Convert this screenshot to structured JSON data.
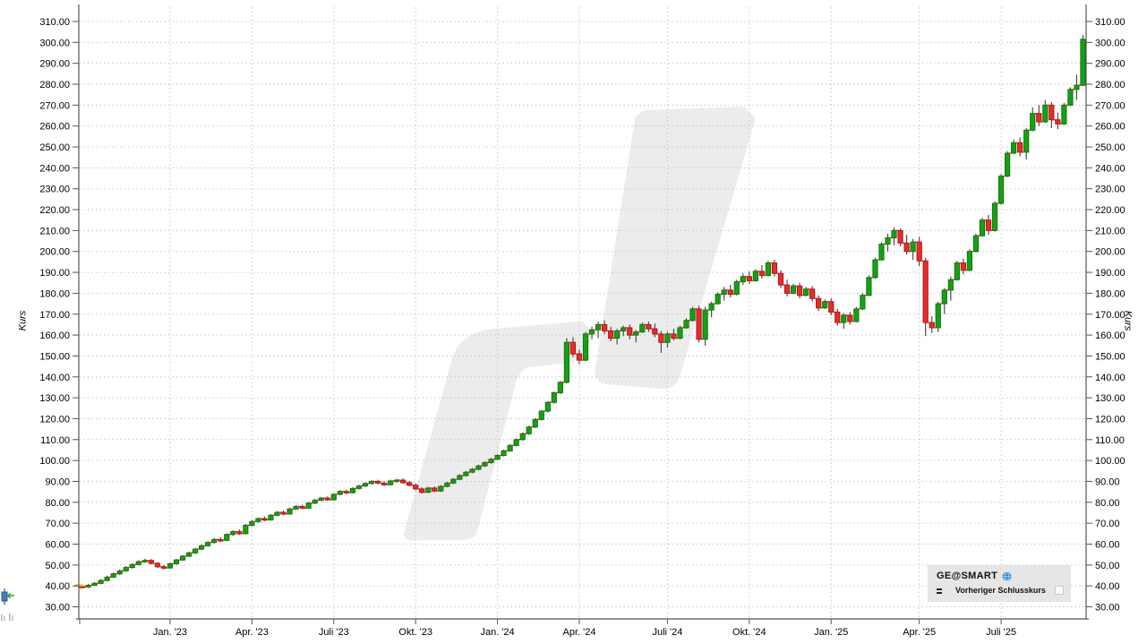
{
  "y_axis": {
    "title": "Kurs",
    "labels": [
      "30.00",
      "40.00",
      "50.00",
      "60.00",
      "70.00",
      "80.00",
      "90.00",
      "100.00",
      "110.00",
      "120.00",
      "130.00",
      "140.00",
      "150.00",
      "160.00",
      "170.00",
      "180.00",
      "190.00",
      "200.00",
      "210.00",
      "220.00",
      "230.00",
      "240.00",
      "250.00",
      "260.00",
      "270.00",
      "280.00",
      "290.00",
      "300.00",
      "310.00"
    ]
  },
  "x_axis": {
    "ticks": [
      {
        "label": "Jan. '23",
        "index": 14
      },
      {
        "label": "Apr. '23",
        "index": 27
      },
      {
        "label": "Juli '23",
        "index": 40
      },
      {
        "label": "Okt. '23",
        "index": 53
      },
      {
        "label": "Jan. '24",
        "index": 66
      },
      {
        "label": "Apr. '24",
        "index": 79
      },
      {
        "label": "Juli '24",
        "index": 93
      },
      {
        "label": "Okt. '24",
        "index": 106
      },
      {
        "label": "Jan. '25",
        "index": 119
      },
      {
        "label": "Apr. '25",
        "index": 133
      },
      {
        "label": "Juli '25",
        "index": 146
      }
    ]
  },
  "legend": {
    "instrument": "GE@SMART",
    "icon": "globe-icon",
    "series_label": "Vorheriger Schlusskurs"
  },
  "colors": {
    "up": "#16a016",
    "up_border": "#0a7a0a",
    "down": "#e62d2d",
    "down_border": "#b01414",
    "wick": "#3f3f3f",
    "prev_close_dash": "#cc3030",
    "grid": "#c6c6c6",
    "axis": "#555555",
    "text": "#000000",
    "watermark": "#ececec",
    "legend_bg": "#e6e6e6",
    "start_marker": "#e9b300"
  },
  "chart_data": {
    "type": "candlestick",
    "title": "",
    "ylabel": "Kurs",
    "ylim": [
      30,
      310
    ],
    "grid": "dotted",
    "legend_position": "bottom-right",
    "interval": "weekly",
    "start_marker": {
      "price": 40.2
    },
    "candles": [
      [
        39.8,
        40.6,
        38.9,
        39.5
      ],
      [
        39.5,
        41.0,
        39.0,
        40.3
      ],
      [
        40.3,
        41.9,
        40.0,
        41.2
      ],
      [
        41.2,
        43.3,
        40.8,
        42.6
      ],
      [
        42.6,
        44.9,
        42.2,
        44.2
      ],
      [
        44.2,
        46.4,
        43.8,
        45.8
      ],
      [
        45.8,
        47.9,
        45.2,
        47.2
      ],
      [
        47.2,
        49.5,
        46.8,
        48.8
      ],
      [
        48.8,
        50.9,
        48.3,
        50.2
      ],
      [
        50.2,
        52.3,
        49.8,
        51.6
      ],
      [
        51.6,
        53.0,
        51.0,
        52.2
      ],
      [
        52.2,
        52.8,
        50.2,
        50.8
      ],
      [
        50.8,
        51.5,
        48.5,
        49.2
      ],
      [
        49.2,
        50.0,
        47.8,
        48.6
      ],
      [
        48.6,
        51.2,
        48.2,
        50.6
      ],
      [
        50.6,
        53.0,
        50.1,
        52.4
      ],
      [
        52.4,
        54.8,
        52.0,
        54.2
      ],
      [
        54.2,
        56.4,
        53.8,
        55.8
      ],
      [
        55.8,
        58.2,
        55.3,
        57.6
      ],
      [
        57.6,
        59.8,
        57.1,
        59.2
      ],
      [
        59.2,
        61.4,
        58.8,
        60.8
      ],
      [
        60.8,
        62.9,
        60.3,
        62.2
      ],
      [
        62.2,
        63.2,
        61.0,
        61.8
      ],
      [
        61.8,
        65.2,
        61.4,
        64.6
      ],
      [
        64.6,
        66.6,
        64.0,
        66.0
      ],
      [
        66.0,
        67.0,
        64.4,
        65.0
      ],
      [
        65.0,
        69.6,
        64.6,
        69.0
      ],
      [
        69.0,
        71.4,
        68.5,
        70.8
      ],
      [
        70.8,
        72.8,
        70.2,
        72.2
      ],
      [
        72.2,
        73.2,
        71.0,
        71.6
      ],
      [
        71.6,
        74.4,
        71.2,
        73.8
      ],
      [
        73.8,
        75.8,
        73.3,
        75.2
      ],
      [
        75.2,
        76.0,
        73.8,
        74.4
      ],
      [
        74.4,
        77.4,
        74.0,
        76.8
      ],
      [
        76.8,
        78.6,
        76.3,
        78.0
      ],
      [
        78.0,
        78.8,
        76.6,
        77.2
      ],
      [
        77.2,
        80.2,
        76.8,
        79.6
      ],
      [
        79.6,
        81.6,
        79.1,
        81.0
      ],
      [
        81.0,
        82.6,
        80.5,
        82.0
      ],
      [
        82.0,
        82.8,
        80.6,
        81.2
      ],
      [
        81.2,
        84.4,
        80.8,
        83.8
      ],
      [
        83.8,
        85.8,
        83.3,
        85.2
      ],
      [
        85.2,
        86.0,
        84.0,
        84.6
      ],
      [
        84.6,
        87.2,
        84.2,
        86.6
      ],
      [
        86.6,
        88.4,
        86.1,
        87.8
      ],
      [
        87.8,
        89.6,
        87.3,
        89.0
      ],
      [
        89.0,
        90.6,
        88.5,
        90.0
      ],
      [
        90.0,
        90.8,
        88.6,
        89.2
      ],
      [
        89.2,
        90.0,
        87.8,
        88.4
      ],
      [
        88.4,
        90.8,
        88.0,
        90.2
      ],
      [
        90.2,
        91.2,
        89.4,
        90.6
      ],
      [
        90.6,
        91.4,
        88.8,
        89.4
      ],
      [
        89.4,
        90.2,
        87.6,
        88.2
      ],
      [
        88.2,
        89.0,
        85.8,
        86.4
      ],
      [
        86.4,
        87.2,
        84.2,
        84.8
      ],
      [
        84.8,
        87.4,
        84.4,
        86.8
      ],
      [
        86.8,
        87.6,
        84.8,
        85.4
      ],
      [
        85.4,
        88.2,
        85.0,
        87.6
      ],
      [
        87.6,
        89.8,
        87.2,
        89.2
      ],
      [
        89.2,
        91.6,
        88.8,
        91.0
      ],
      [
        91.0,
        93.4,
        90.6,
        92.8
      ],
      [
        92.8,
        95.0,
        92.3,
        94.4
      ],
      [
        94.4,
        96.4,
        93.9,
        95.8
      ],
      [
        95.8,
        98.0,
        95.3,
        97.4
      ],
      [
        97.4,
        99.6,
        96.9,
        99.0
      ],
      [
        99.0,
        101.2,
        98.5,
        100.6
      ],
      [
        100.6,
        103.0,
        100.1,
        102.4
      ],
      [
        102.4,
        105.2,
        101.9,
        104.6
      ],
      [
        104.6,
        107.8,
        104.1,
        107.2
      ],
      [
        107.2,
        110.6,
        106.7,
        110.0
      ],
      [
        110.0,
        113.4,
        109.4,
        112.8
      ],
      [
        112.8,
        116.6,
        112.3,
        116.0
      ],
      [
        116.0,
        120.2,
        115.5,
        119.6
      ],
      [
        119.6,
        124.2,
        119.1,
        123.6
      ],
      [
        123.6,
        128.4,
        123.0,
        127.8
      ],
      [
        127.8,
        133.0,
        127.2,
        132.4
      ],
      [
        132.4,
        138.0,
        131.8,
        137.4
      ],
      [
        137.4,
        158.5,
        136.9,
        156.5
      ],
      [
        156.5,
        159.0,
        149.5,
        151.0
      ],
      [
        151.0,
        153.0,
        146.0,
        148.0
      ],
      [
        148.0,
        161.5,
        147.5,
        160.5
      ],
      [
        160.5,
        164.0,
        158.0,
        162.5
      ],
      [
        162.5,
        166.5,
        158.5,
        165.0
      ],
      [
        165.0,
        167.0,
        160.5,
        162.0
      ],
      [
        162.0,
        164.0,
        157.0,
        158.5
      ],
      [
        158.5,
        163.0,
        155.5,
        162.0
      ],
      [
        162.0,
        164.5,
        159.5,
        163.5
      ],
      [
        163.5,
        165.0,
        158.0,
        160.0
      ],
      [
        160.0,
        162.5,
        156.5,
        161.5
      ],
      [
        161.5,
        166.0,
        161.0,
        165.0
      ],
      [
        165.0,
        166.5,
        161.5,
        163.0
      ],
      [
        163.0,
        165.5,
        159.0,
        160.5
      ],
      [
        160.5,
        162.0,
        151.5,
        156.5
      ],
      [
        156.5,
        161.5,
        154.0,
        160.5
      ],
      [
        160.5,
        163.0,
        157.5,
        158.5
      ],
      [
        158.5,
        164.5,
        158.0,
        163.5
      ],
      [
        163.5,
        168.0,
        163.0,
        167.0
      ],
      [
        167.0,
        173.5,
        166.5,
        172.5
      ],
      [
        172.5,
        174.0,
        156.5,
        158.0
      ],
      [
        158.0,
        173.5,
        155.0,
        172.0
      ],
      [
        172.0,
        176.0,
        168.5,
        175.0
      ],
      [
        175.0,
        180.5,
        174.5,
        179.5
      ],
      [
        179.5,
        183.0,
        176.5,
        181.5
      ],
      [
        181.5,
        184.0,
        178.0,
        179.5
      ],
      [
        179.5,
        186.5,
        179.0,
        185.5
      ],
      [
        185.5,
        189.5,
        184.0,
        188.0
      ],
      [
        188.0,
        190.5,
        184.5,
        186.0
      ],
      [
        186.0,
        191.5,
        185.5,
        190.5
      ],
      [
        190.5,
        193.5,
        187.0,
        188.5
      ],
      [
        188.5,
        195.5,
        188.0,
        194.5
      ],
      [
        194.5,
        196.0,
        188.0,
        189.5
      ],
      [
        189.5,
        191.0,
        182.5,
        184.0
      ],
      [
        184.0,
        186.5,
        178.5,
        180.0
      ],
      [
        180.0,
        184.5,
        179.5,
        183.5
      ],
      [
        183.5,
        185.0,
        177.5,
        179.0
      ],
      [
        179.0,
        183.0,
        178.5,
        182.0
      ],
      [
        182.0,
        183.5,
        176.0,
        177.5
      ],
      [
        177.5,
        179.0,
        171.5,
        173.0
      ],
      [
        173.0,
        177.0,
        172.5,
        176.0
      ],
      [
        176.0,
        177.5,
        169.5,
        171.0
      ],
      [
        171.0,
        172.5,
        164.5,
        166.0
      ],
      [
        166.0,
        170.5,
        163.0,
        169.5
      ],
      [
        169.5,
        171.0,
        165.0,
        166.5
      ],
      [
        166.5,
        173.5,
        166.0,
        172.5
      ],
      [
        172.5,
        180.0,
        172.0,
        179.0
      ],
      [
        179.0,
        188.5,
        178.5,
        187.5
      ],
      [
        187.5,
        197.0,
        187.0,
        196.0
      ],
      [
        196.0,
        204.5,
        195.5,
        203.5
      ],
      [
        203.5,
        208.5,
        200.0,
        206.5
      ],
      [
        206.5,
        211.5,
        203.0,
        210.0
      ],
      [
        210.0,
        211.0,
        202.5,
        204.0
      ],
      [
        204.0,
        208.0,
        198.5,
        200.0
      ],
      [
        200.0,
        206.0,
        196.0,
        204.5
      ],
      [
        204.5,
        207.0,
        193.0,
        195.5
      ],
      [
        195.5,
        197.0,
        159.5,
        166.0
      ],
      [
        166.0,
        169.0,
        161.0,
        163.5
      ],
      [
        163.5,
        176.0,
        161.5,
        175.0
      ],
      [
        175.0,
        182.5,
        170.0,
        181.5
      ],
      [
        181.5,
        188.0,
        176.5,
        186.5
      ],
      [
        186.5,
        195.5,
        186.0,
        194.5
      ],
      [
        194.5,
        196.5,
        189.0,
        191.0
      ],
      [
        191.0,
        201.0,
        190.5,
        200.0
      ],
      [
        200.0,
        208.5,
        199.5,
        207.5
      ],
      [
        207.5,
        216.0,
        207.0,
        215.0
      ],
      [
        215.0,
        217.5,
        208.0,
        210.0
      ],
      [
        210.0,
        224.0,
        209.5,
        223.0
      ],
      [
        223.0,
        237.0,
        222.5,
        236.0
      ],
      [
        236.0,
        248.0,
        235.5,
        247.0
      ],
      [
        247.0,
        253.5,
        246.5,
        252.0
      ],
      [
        252.0,
        254.5,
        245.5,
        247.5
      ],
      [
        247.5,
        259.0,
        244.0,
        258.0
      ],
      [
        258.0,
        269.0,
        257.5,
        266.0
      ],
      [
        266.0,
        270.0,
        260.0,
        262.0
      ],
      [
        262.0,
        272.5,
        261.5,
        270.0
      ],
      [
        270.0,
        271.5,
        259.0,
        263.0
      ],
      [
        263.0,
        266.5,
        258.5,
        261.0
      ],
      [
        261.0,
        271.0,
        260.5,
        270.0
      ],
      [
        270.0,
        278.5,
        269.5,
        277.5
      ],
      [
        277.5,
        284.5,
        272.5,
        279.5
      ],
      [
        279.5,
        303.5,
        279.0,
        301.5
      ]
    ]
  }
}
